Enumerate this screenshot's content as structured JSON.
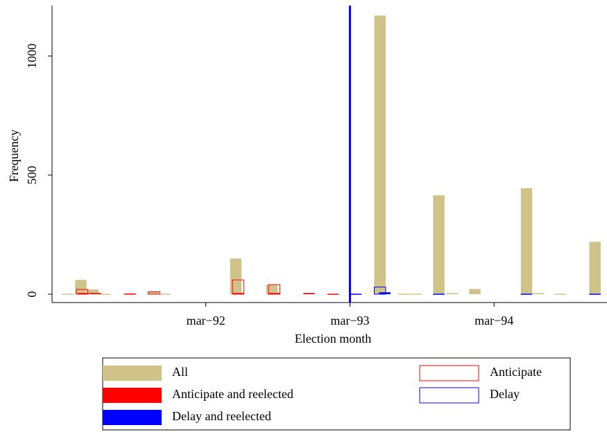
{
  "chart_data": {
    "type": "bar",
    "xlabel": "Election month",
    "ylabel": "Frequency",
    "xlim": [
      373.2,
      419.4
    ],
    "ylim": [
      -35,
      1212
    ],
    "xticks": [
      {
        "value": 386,
        "label": "mar−92"
      },
      {
        "value": 398,
        "label": "mar−93"
      },
      {
        "value": 410,
        "label": "mar−94"
      }
    ],
    "yticks": [
      0,
      500,
      1000
    ],
    "reference_line": {
      "x": 398,
      "color": "#0000ff"
    },
    "series": [
      {
        "name": "All",
        "color": "#cfc38a",
        "style": "filled",
        "x": [
          374.5,
          375.6,
          376.6,
          377.6,
          379.6,
          381.6,
          382.6,
          388.5,
          391.5,
          400.5,
          402.5,
          403.5,
          405.4,
          406.5,
          408.4,
          412.7,
          413.7,
          415.5,
          418.4
        ],
        "values": [
          2,
          60,
          20,
          2,
          2,
          10,
          2,
          150,
          40,
          1170,
          2,
          2,
          415,
          5,
          22,
          445,
          5,
          2,
          220
        ]
      },
      {
        "name": "Anticipate",
        "color": "#ff0000",
        "style": "outline",
        "x": [
          375.7,
          381.7,
          388.7,
          391.7
        ],
        "values": [
          20,
          10,
          60,
          40
        ]
      },
      {
        "name": "Anticipate and reelected",
        "color": "#ff0000",
        "style": "filled",
        "x": [
          375.8,
          376.8,
          379.7,
          388.7,
          391.7,
          394.6,
          396.6
        ],
        "values": [
          5,
          5,
          3,
          5,
          5,
          5,
          2
        ]
      },
      {
        "name": "Delay",
        "color": "#0000ff",
        "style": "outline",
        "x": [
          400.5
        ],
        "values": [
          30
        ]
      },
      {
        "name": "Delay and reelected",
        "color": "#0000ff",
        "style": "filled",
        "x": [
          398.5,
          400.9,
          405.4,
          412.7,
          418.4
        ],
        "values": [
          2,
          8,
          2,
          2,
          2
        ]
      }
    ]
  }
}
